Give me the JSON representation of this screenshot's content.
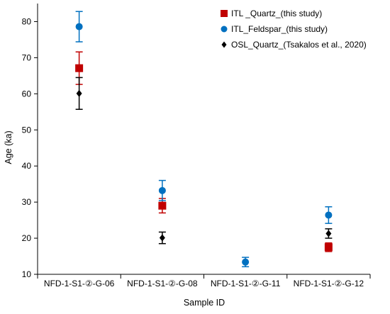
{
  "chart_data": {
    "type": "scatter",
    "xlabel": "Sample ID",
    "ylabel": "Age (ka)",
    "ylim": [
      10,
      85
    ],
    "yticks": [
      10,
      20,
      30,
      40,
      50,
      60,
      70,
      80
    ],
    "categories": [
      "NFD-1-S1-②-G-06",
      "NFD-1-S1-②-G-08",
      "NFD-1-S1-②-G-11",
      "NFD-1-S1-②-G-12"
    ],
    "grid": false,
    "legend_position": "top-right",
    "series": [
      {
        "name": "ITL _Quartz_(this study)",
        "marker": "square",
        "color": "#c00000",
        "values": [
          67.1,
          29.0,
          null,
          17.5
        ],
        "errors": [
          4.5,
          2.0,
          null,
          1.2
        ]
      },
      {
        "name": "ITL_Feldspar_(this study)",
        "marker": "circle",
        "color": "#0070c0",
        "values": [
          78.6,
          33.2,
          13.4,
          26.4
        ],
        "errors": [
          4.2,
          2.8,
          1.3,
          2.3
        ]
      },
      {
        "name": "OSL_Quartz_(Tsakalos et al., 2020)",
        "marker": "diamond",
        "color": "#000000",
        "values": [
          60.1,
          20.1,
          null,
          21.3
        ],
        "errors": [
          4.4,
          1.6,
          null,
          1.3
        ]
      }
    ]
  }
}
